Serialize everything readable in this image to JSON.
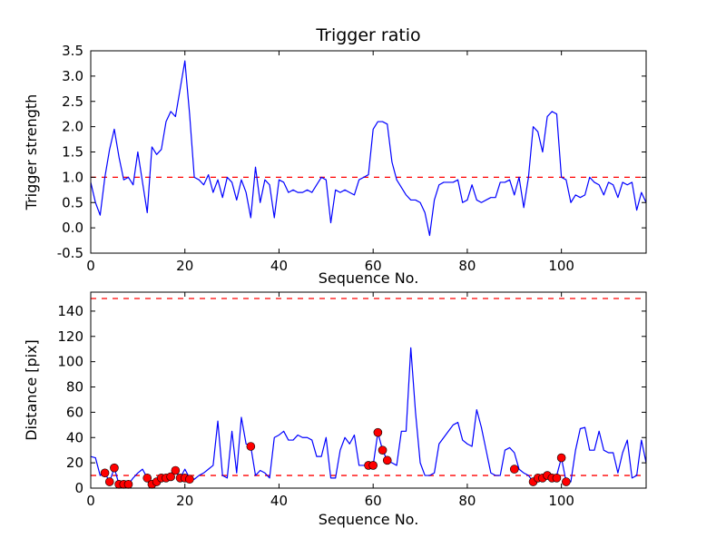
{
  "figure": {
    "background": "#ffffff",
    "line_color": "#0000ff",
    "threshold_color": "#ff0000",
    "marker_color": "#ff0000"
  },
  "chart_data": [
    {
      "type": "line",
      "name": "trigger-ratio-chart",
      "title": "Trigger ratio",
      "xlabel": "Sequence No.",
      "ylabel": "Trigger strength",
      "xlim": [
        0,
        118
      ],
      "ylim": [
        -0.5,
        3.5
      ],
      "xticks": [
        0,
        20,
        40,
        60,
        80,
        100
      ],
      "xticklabels": [
        "0",
        "20",
        "40",
        "60",
        "80",
        "100"
      ],
      "yticks": [
        -0.5,
        0.0,
        0.5,
        1.0,
        1.5,
        2.0,
        2.5,
        3.0,
        3.5
      ],
      "yticklabels": [
        "-0.5",
        "0.0",
        "0.5",
        "1.0",
        "1.5",
        "2.0",
        "2.5",
        "3.0",
        "3.5"
      ],
      "grid": false,
      "legend": null,
      "hlines": [
        {
          "y": 1.0,
          "color": "#ff0000",
          "style": "dashed",
          "name": "trigger-threshold"
        }
      ],
      "series": [
        {
          "name": "trigger-strength",
          "color": "#0000ff",
          "y": [
            0.9,
            0.5,
            0.25,
            1.0,
            1.55,
            1.95,
            1.4,
            0.95,
            1.0,
            0.85,
            1.5,
            0.9,
            0.3,
            1.6,
            1.45,
            1.55,
            2.1,
            2.3,
            2.2,
            2.75,
            3.3,
            2.25,
            1.0,
            0.95,
            0.85,
            1.05,
            0.7,
            0.95,
            0.6,
            1.0,
            0.9,
            0.55,
            0.95,
            0.7,
            0.2,
            1.2,
            0.5,
            0.95,
            0.85,
            0.2,
            0.95,
            0.9,
            0.7,
            0.75,
            0.7,
            0.7,
            0.75,
            0.7,
            0.85,
            1.0,
            0.95,
            0.1,
            0.75,
            0.7,
            0.75,
            0.7,
            0.65,
            0.95,
            1.0,
            1.05,
            1.95,
            2.1,
            2.1,
            2.05,
            1.3,
            0.95,
            0.8,
            0.65,
            0.55,
            0.55,
            0.5,
            0.3,
            -0.15,
            0.55,
            0.85,
            0.9,
            0.9,
            0.9,
            0.95,
            0.5,
            0.55,
            0.85,
            0.55,
            0.5,
            0.55,
            0.6,
            0.6,
            0.9,
            0.9,
            0.95,
            0.65,
            1.0,
            0.4,
            1.0,
            2.0,
            1.9,
            1.5,
            2.2,
            2.3,
            2.25,
            1.0,
            0.95,
            0.5,
            0.65,
            0.6,
            0.65,
            1.0,
            0.9,
            0.85,
            0.65,
            0.9,
            0.85,
            0.6,
            0.9,
            0.85,
            0.9,
            0.35,
            0.7,
            0.5
          ]
        }
      ]
    },
    {
      "type": "line+scatter",
      "name": "distance-chart",
      "title": "",
      "xlabel": "Sequence No.",
      "ylabel": "Distance [pix]",
      "xlim": [
        0,
        118
      ],
      "ylim": [
        0,
        155
      ],
      "xticks": [
        0,
        20,
        40,
        60,
        80,
        100
      ],
      "xticklabels": [
        "0",
        "20",
        "40",
        "60",
        "80",
        "100"
      ],
      "yticks": [
        0,
        20,
        40,
        60,
        80,
        100,
        120,
        140
      ],
      "yticklabels": [
        "0",
        "20",
        "40",
        "60",
        "80",
        "100",
        "120",
        "140"
      ],
      "grid": false,
      "legend": null,
      "hlines": [
        {
          "y": 150,
          "color": "#ff0000",
          "style": "dashed",
          "name": "upper-distance-threshold"
        },
        {
          "y": 10,
          "color": "#ff0000",
          "style": "dashed",
          "name": "lower-distance-threshold"
        }
      ],
      "series": [
        {
          "name": "distance",
          "color": "#0000ff",
          "y": [
            25,
            24,
            10,
            12,
            5,
            16,
            3,
            3,
            3,
            8,
            12,
            15,
            8,
            3,
            5,
            8,
            9,
            10,
            14,
            8,
            15,
            8,
            7,
            10,
            12,
            15,
            18,
            53,
            10,
            8,
            45,
            12,
            56,
            35,
            33,
            10,
            14,
            12,
            8,
            40,
            42,
            45,
            38,
            38,
            42,
            40,
            40,
            38,
            25,
            25,
            40,
            8,
            8,
            30,
            40,
            35,
            42,
            18,
            18,
            18,
            18,
            44,
            30,
            22,
            20,
            18,
            45,
            45,
            111,
            60,
            20,
            10,
            10,
            12,
            35,
            40,
            45,
            50,
            52,
            38,
            35,
            33,
            62,
            48,
            30,
            12,
            10,
            10,
            30,
            32,
            28,
            15,
            12,
            10,
            5,
            8,
            8,
            10,
            8,
            10,
            24,
            5,
            5,
            30,
            47,
            48,
            30,
            30,
            45,
            30,
            28,
            28,
            12,
            28,
            38,
            8,
            10,
            38,
            20
          ]
        }
      ],
      "scatter": {
        "name": "triggered",
        "color": "#ff0000",
        "points": [
          [
            3,
            12
          ],
          [
            4,
            5
          ],
          [
            5,
            16
          ],
          [
            6,
            3
          ],
          [
            7,
            3
          ],
          [
            8,
            3
          ],
          [
            12,
            8
          ],
          [
            13,
            3
          ],
          [
            14,
            5
          ],
          [
            15,
            8
          ],
          [
            16,
            8
          ],
          [
            17,
            9
          ],
          [
            18,
            14
          ],
          [
            19,
            8
          ],
          [
            20,
            8
          ],
          [
            21,
            7
          ],
          [
            34,
            33
          ],
          [
            59,
            18
          ],
          [
            60,
            18
          ],
          [
            61,
            44
          ],
          [
            62,
            30
          ],
          [
            63,
            22
          ],
          [
            90,
            15
          ],
          [
            94,
            5
          ],
          [
            95,
            8
          ],
          [
            96,
            8
          ],
          [
            97,
            10
          ],
          [
            98,
            8
          ],
          [
            99,
            8
          ],
          [
            100,
            24
          ],
          [
            101,
            5
          ]
        ]
      }
    }
  ]
}
